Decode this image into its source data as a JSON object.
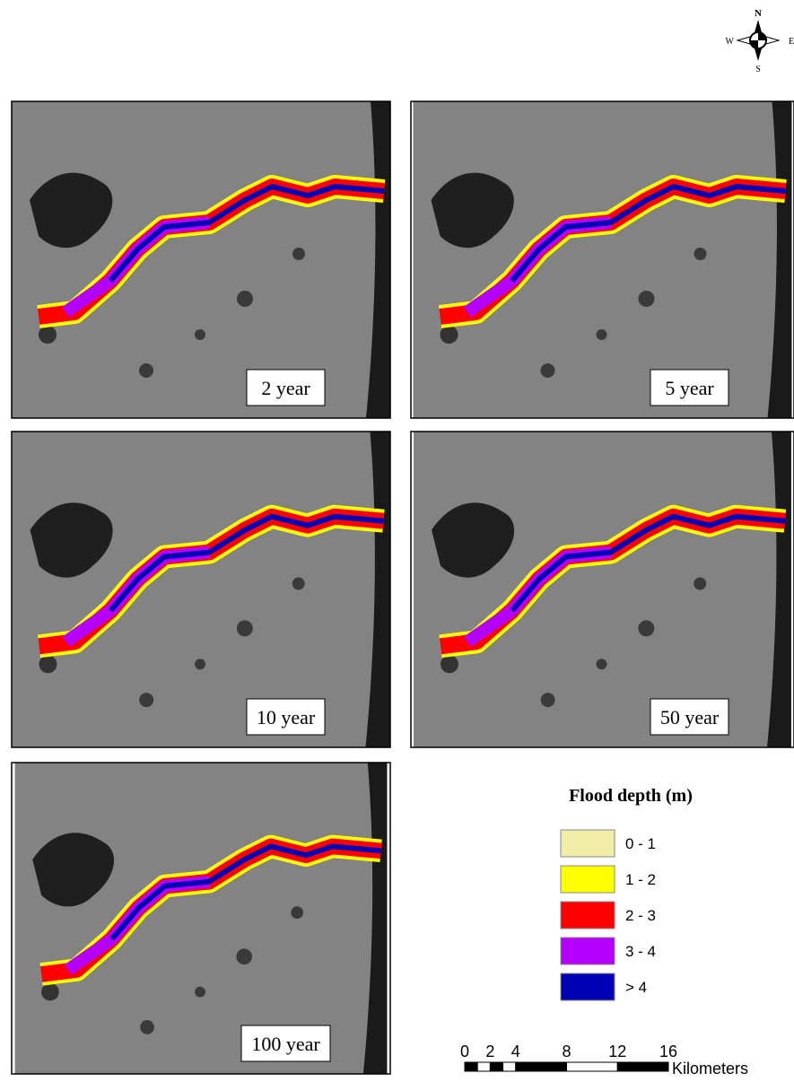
{
  "compass": {
    "north": "N",
    "south": "S",
    "west": "W",
    "east": "E"
  },
  "panels": [
    {
      "label": "2 year"
    },
    {
      "label": "5 year"
    },
    {
      "label": "10 year"
    },
    {
      "label": "50 year"
    },
    {
      "label": "100 year"
    }
  ],
  "legend": {
    "title": "Flood depth (m)",
    "items": [
      {
        "label": "0 - 1",
        "color": "#f1eda6"
      },
      {
        "label": "1 - 2",
        "color": "#ffff00"
      },
      {
        "label": "2 - 3",
        "color": "#ff0000"
      },
      {
        "label": "3 - 4",
        "color": "#b400ff"
      },
      {
        "label": "> 4",
        "color": "#0000b4"
      }
    ]
  },
  "scale_bar": {
    "ticks": [
      0,
      2,
      4,
      8,
      12,
      16
    ],
    "unit": "Kilometers"
  }
}
